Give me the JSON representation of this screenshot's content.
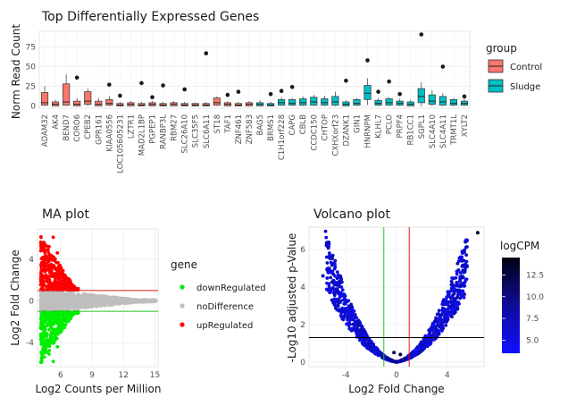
{
  "chart_data": [
    {
      "type": "boxplot",
      "title": "Top Differentially Expressed Genes",
      "xlabel": "",
      "ylabel": "Norm Read Count",
      "ylim": [
        -3,
        95
      ],
      "y_ticks": [
        0,
        25,
        50,
        75
      ],
      "legend": {
        "title": "group",
        "placement": "right",
        "entries": [
          {
            "name": "Control",
            "color": "#f8766d",
            "stroke": "#a03a35"
          },
          {
            "name": "Sludge",
            "color": "#00bfc4",
            "stroke": "#00787c"
          }
        ]
      },
      "genes": [
        "ADAM32",
        "AK4",
        "BEND7",
        "CORO6",
        "CPEB2",
        "GPR161",
        "KIAA0556",
        "LOC105605231",
        "LZTR1",
        "MAD2L1BP",
        "PGPEP1",
        "RANBP3L",
        "RBM27",
        "SLC26A10",
        "SLC35F5",
        "SLC6A11",
        "ST18",
        "TAF1",
        "ZNF461",
        "ZNF583",
        "BAG5",
        "BRMS1",
        "C1H1orf228",
        "CAPG",
        "CBLB",
        "CCDC150",
        "CHTOP",
        "CXHXorf23",
        "DZANK1",
        "GIN1",
        "HNRNPM",
        "KLHL7",
        "PCLO",
        "PRPF4",
        "RB1CC1",
        "SGPL1",
        "SLC4A10",
        "SLC4A11",
        "TRMT1L",
        "XYLT2"
      ],
      "boxes": [
        {
          "gene": "ADAM32",
          "group": "Control",
          "q1": 1,
          "median": 4,
          "q3": 17,
          "wmin": 0,
          "wmax": 25,
          "outliers": []
        },
        {
          "gene": "AK4",
          "group": "Control",
          "q1": 0,
          "median": 2,
          "q3": 5,
          "wmin": 0,
          "wmax": 8,
          "outliers": []
        },
        {
          "gene": "BEND7",
          "group": "Control",
          "q1": 1,
          "median": 5,
          "q3": 28,
          "wmin": 0,
          "wmax": 40,
          "outliers": []
        },
        {
          "gene": "CORO6",
          "group": "Control",
          "q1": 0,
          "median": 2,
          "q3": 6,
          "wmin": 0,
          "wmax": 10,
          "outliers": [
            36
          ]
        },
        {
          "gene": "CPEB2",
          "group": "Control",
          "q1": 2,
          "median": 6,
          "q3": 18,
          "wmin": 0,
          "wmax": 22,
          "outliers": []
        },
        {
          "gene": "GPR161",
          "group": "Control",
          "q1": 0,
          "median": 2,
          "q3": 6,
          "wmin": 0,
          "wmax": 10,
          "outliers": []
        },
        {
          "gene": "KIAA0556",
          "group": "Control",
          "q1": 1,
          "median": 3,
          "q3": 8,
          "wmin": 0,
          "wmax": 12,
          "outliers": [
            27
          ]
        },
        {
          "gene": "LOC105605231",
          "group": "Control",
          "q1": 0,
          "median": 1,
          "q3": 3,
          "wmin": 0,
          "wmax": 5,
          "outliers": [
            13
          ]
        },
        {
          "gene": "LZTR1",
          "group": "Control",
          "q1": 0,
          "median": 2,
          "q3": 4,
          "wmin": 0,
          "wmax": 6,
          "outliers": []
        },
        {
          "gene": "MAD2L1BP",
          "group": "Control",
          "q1": 0,
          "median": 1,
          "q3": 3,
          "wmin": 0,
          "wmax": 5,
          "outliers": [
            29
          ]
        },
        {
          "gene": "PGPEP1",
          "group": "Control",
          "q1": 0,
          "median": 2,
          "q3": 4,
          "wmin": 0,
          "wmax": 6,
          "outliers": [
            11
          ]
        },
        {
          "gene": "RANBP3L",
          "group": "Control",
          "q1": 0,
          "median": 1,
          "q3": 3,
          "wmin": 0,
          "wmax": 5,
          "outliers": [
            26
          ]
        },
        {
          "gene": "RBM27",
          "group": "Control",
          "q1": 0,
          "median": 2,
          "q3": 4,
          "wmin": 0,
          "wmax": 6,
          "outliers": []
        },
        {
          "gene": "SLC26A10",
          "group": "Control",
          "q1": 0,
          "median": 1,
          "q3": 3,
          "wmin": 0,
          "wmax": 5,
          "outliers": [
            21
          ]
        },
        {
          "gene": "SLC35F5",
          "group": "Control",
          "q1": 0,
          "median": 1,
          "q3": 3,
          "wmin": 0,
          "wmax": 4,
          "outliers": []
        },
        {
          "gene": "SLC6A11",
          "group": "Control",
          "q1": 0,
          "median": 1,
          "q3": 3,
          "wmin": 0,
          "wmax": 5,
          "outliers": [
            67
          ]
        },
        {
          "gene": "ST18",
          "group": "Control",
          "q1": 1,
          "median": 4,
          "q3": 10,
          "wmin": 0,
          "wmax": 12,
          "outliers": []
        },
        {
          "gene": "TAF1",
          "group": "Control",
          "q1": 0,
          "median": 2,
          "q3": 4,
          "wmin": 0,
          "wmax": 6,
          "outliers": [
            14
          ]
        },
        {
          "gene": "ZNF461",
          "group": "Control",
          "q1": 0,
          "median": 1,
          "q3": 3,
          "wmin": 0,
          "wmax": 5,
          "outliers": [
            18
          ]
        },
        {
          "gene": "ZNF583",
          "group": "Control",
          "q1": 0,
          "median": 2,
          "q3": 4,
          "wmin": 0,
          "wmax": 6,
          "outliers": []
        },
        {
          "gene": "BAG5",
          "group": "Sludge",
          "q1": 0,
          "median": 2,
          "q3": 4,
          "wmin": 0,
          "wmax": 7,
          "outliers": []
        },
        {
          "gene": "BRMS1",
          "group": "Sludge",
          "q1": 0,
          "median": 1,
          "q3": 3,
          "wmin": 0,
          "wmax": 5,
          "outliers": [
            15
          ]
        },
        {
          "gene": "C1H1orf228",
          "group": "Sludge",
          "q1": 1,
          "median": 4,
          "q3": 8,
          "wmin": 0,
          "wmax": 11,
          "outliers": [
            19
          ]
        },
        {
          "gene": "CAPG",
          "group": "Sludge",
          "q1": 1,
          "median": 3,
          "q3": 8,
          "wmin": 0,
          "wmax": 10,
          "outliers": [
            24
          ]
        },
        {
          "gene": "CBLB",
          "group": "Sludge",
          "q1": 1,
          "median": 4,
          "q3": 9,
          "wmin": 0,
          "wmax": 12,
          "outliers": []
        },
        {
          "gene": "CCDC150",
          "group": "Sludge",
          "q1": 1,
          "median": 5,
          "q3": 11,
          "wmin": 0,
          "wmax": 14,
          "outliers": []
        },
        {
          "gene": "CHTOP",
          "group": "Sludge",
          "q1": 1,
          "median": 4,
          "q3": 9,
          "wmin": 0,
          "wmax": 13,
          "outliers": []
        },
        {
          "gene": "CXHXorf23",
          "group": "Sludge",
          "q1": 1,
          "median": 5,
          "q3": 12,
          "wmin": 0,
          "wmax": 18,
          "outliers": []
        },
        {
          "gene": "DZANK1",
          "group": "Sludge",
          "q1": 0,
          "median": 2,
          "q3": 5,
          "wmin": 0,
          "wmax": 7,
          "outliers": [
            32
          ]
        },
        {
          "gene": "GIN1",
          "group": "Sludge",
          "q1": 1,
          "median": 3,
          "q3": 8,
          "wmin": 0,
          "wmax": 10,
          "outliers": []
        },
        {
          "gene": "HNRNPM",
          "group": "Sludge",
          "q1": 8,
          "median": 16,
          "q3": 26,
          "wmin": 1,
          "wmax": 35,
          "outliers": [
            58
          ]
        },
        {
          "gene": "KLHL7",
          "group": "Sludge",
          "q1": 1,
          "median": 3,
          "q3": 7,
          "wmin": 0,
          "wmax": 10,
          "outliers": [
            18
          ]
        },
        {
          "gene": "PCLO",
          "group": "Sludge",
          "q1": 1,
          "median": 4,
          "q3": 9,
          "wmin": 0,
          "wmax": 11,
          "outliers": [
            31
          ]
        },
        {
          "gene": "PRPF4",
          "group": "Sludge",
          "q1": 1,
          "median": 3,
          "q3": 6,
          "wmin": 0,
          "wmax": 9,
          "outliers": [
            15
          ]
        },
        {
          "gene": "RB1CC1",
          "group": "Sludge",
          "q1": 0,
          "median": 2,
          "q3": 5,
          "wmin": 0,
          "wmax": 8,
          "outliers": []
        },
        {
          "gene": "SGPL1",
          "group": "Sludge",
          "q1": 4,
          "median": 12,
          "q3": 22,
          "wmin": 0,
          "wmax": 30,
          "outliers": [
            91
          ]
        },
        {
          "gene": "SLC4A10",
          "group": "Sludge",
          "q1": 2,
          "median": 6,
          "q3": 14,
          "wmin": 0,
          "wmax": 20,
          "outliers": []
        },
        {
          "gene": "SLC4A11",
          "group": "Sludge",
          "q1": 1,
          "median": 5,
          "q3": 12,
          "wmin": 0,
          "wmax": 16,
          "outliers": [
            50
          ]
        },
        {
          "gene": "TRMT1L",
          "group": "Sludge",
          "q1": 1,
          "median": 3,
          "q3": 8,
          "wmin": 0,
          "wmax": 10,
          "outliers": []
        },
        {
          "gene": "XYLT2",
          "group": "Sludge",
          "q1": 1,
          "median": 3,
          "q3": 6,
          "wmin": 0,
          "wmax": 9,
          "outliers": [
            12
          ]
        }
      ]
    },
    {
      "type": "scatter",
      "title": "MA plot",
      "xlabel": "Log2 Counts per Million",
      "ylabel": "Log2 Fold Change",
      "xlim": [
        3.8,
        15.3
      ],
      "ylim": [
        -6.3,
        6.9
      ],
      "x_ticks": [
        6,
        9,
        12,
        15
      ],
      "y_ticks": [
        -4,
        0,
        4
      ],
      "hlines": [
        {
          "y": 1,
          "color": "#e41a1c"
        },
        {
          "y": -1,
          "color": "#22c422"
        }
      ],
      "legend": {
        "title": "gene",
        "placement": "right",
        "entries": [
          {
            "name": "downRegulated",
            "color": "#00ee00"
          },
          {
            "name": "noDifference",
            "color": "#bebebe"
          },
          {
            "name": "upRegulated",
            "color": "#ff0000"
          }
        ]
      },
      "series": [
        {
          "name": "noDifference",
          "color": "#bebebe",
          "points": [
            [
              4.2,
              0.5
            ],
            [
              4.4,
              -0.6
            ],
            [
              4.6,
              0.8
            ],
            [
              4.8,
              -0.9
            ],
            [
              5.0,
              0.3
            ],
            [
              5.3,
              -0.4
            ],
            [
              5.6,
              0.6
            ],
            [
              6.0,
              -0.7
            ],
            [
              6.5,
              0.4
            ],
            [
              7.0,
              -0.3
            ],
            [
              7.5,
              0.2
            ],
            [
              8.0,
              -0.2
            ],
            [
              8.5,
              0.1
            ],
            [
              9.0,
              -0.1
            ],
            [
              9.5,
              0.0
            ],
            [
              10.0,
              0.1
            ],
            [
              10.5,
              -0.1
            ],
            [
              11.0,
              0.05
            ],
            [
              11.5,
              0.1
            ],
            [
              12.0,
              -0.05
            ],
            [
              12.5,
              0.0
            ],
            [
              13.0,
              0.05
            ],
            [
              13.5,
              0.0
            ],
            [
              14.0,
              0.02
            ],
            [
              14.6,
              0.0
            ],
            [
              15.1,
              0.0
            ]
          ]
        },
        {
          "name": "upRegulated",
          "color": "#ff0000",
          "points": [
            [
              4.3,
              1.4
            ],
            [
              4.5,
              2.8
            ],
            [
              4.7,
              4.2
            ],
            [
              4.9,
              5.2
            ],
            [
              5.1,
              3.5
            ],
            [
              5.3,
              6.1
            ],
            [
              5.5,
              2.1
            ],
            [
              5.7,
              4.6
            ],
            [
              5.9,
              1.8
            ],
            [
              6.0,
              3.1
            ],
            [
              6.2,
              2.4
            ],
            [
              6.4,
              1.6
            ],
            [
              6.6,
              2.0
            ],
            [
              6.8,
              1.3
            ],
            [
              7.0,
              1.5
            ],
            [
              7.3,
              1.2
            ],
            [
              7.6,
              1.1
            ]
          ]
        },
        {
          "name": "downRegulated",
          "color": "#00ee00",
          "points": [
            [
              4.3,
              -1.3
            ],
            [
              4.5,
              -2.6
            ],
            [
              4.7,
              -3.9
            ],
            [
              4.9,
              -5.1
            ],
            [
              5.1,
              -3.2
            ],
            [
              5.3,
              -5.8
            ],
            [
              5.5,
              -2.0
            ],
            [
              5.7,
              -4.4
            ],
            [
              5.9,
              -1.7
            ],
            [
              6.0,
              -3.0
            ],
            [
              6.2,
              -2.3
            ],
            [
              6.4,
              -1.5
            ],
            [
              6.6,
              -1.9
            ],
            [
              6.8,
              -1.2
            ],
            [
              7.0,
              -1.4
            ],
            [
              7.3,
              -1.1
            ],
            [
              7.6,
              -1.05
            ]
          ]
        }
      ]
    },
    {
      "type": "scatter",
      "title": "Volcano plot",
      "xlabel": "Log2 Fold Change",
      "ylabel": "-Log10 adjusted p-Value",
      "xlim": [
        -6.9,
        6.9
      ],
      "ylim": [
        -0.25,
        7.2
      ],
      "x_ticks": [
        -4,
        0,
        4
      ],
      "y_ticks": [
        0,
        2,
        4,
        6
      ],
      "vlines": [
        {
          "x": -1,
          "color": "#22c422"
        },
        {
          "x": 1,
          "color": "#e41a1c"
        }
      ],
      "hlines": [
        {
          "y": 1.3,
          "color": "#000000"
        }
      ],
      "colorbar": {
        "title": "logCPM",
        "min": 3.5,
        "max": 14.5,
        "ticks": [
          5.0,
          7.5,
          10.0,
          12.5
        ],
        "low_color": "#1010ff",
        "high_color": "#000010"
      },
      "points": [
        {
          "x": -5.8,
          "y": 4.6,
          "c": 6
        },
        {
          "x": -5.3,
          "y": 3.9,
          "c": 5
        },
        {
          "x": -4.9,
          "y": 3.3,
          "c": 5
        },
        {
          "x": -4.5,
          "y": 2.8,
          "c": 6
        },
        {
          "x": -4.1,
          "y": 2.4,
          "c": 5
        },
        {
          "x": -3.7,
          "y": 2.0,
          "c": 5
        },
        {
          "x": -3.3,
          "y": 1.7,
          "c": 6
        },
        {
          "x": -2.9,
          "y": 1.3,
          "c": 5
        },
        {
          "x": -2.5,
          "y": 1.0,
          "c": 6
        },
        {
          "x": -2.1,
          "y": 0.8,
          "c": 7
        },
        {
          "x": -1.7,
          "y": 0.6,
          "c": 5
        },
        {
          "x": -1.4,
          "y": 0.4,
          "c": 6
        },
        {
          "x": -1.0,
          "y": 0.3,
          "c": 8
        },
        {
          "x": -0.7,
          "y": 0.2,
          "c": 9
        },
        {
          "x": -0.4,
          "y": 0.1,
          "c": 10
        },
        {
          "x": 0.0,
          "y": 0.02,
          "c": 11
        },
        {
          "x": 0.4,
          "y": 0.1,
          "c": 10
        },
        {
          "x": 0.7,
          "y": 0.2,
          "c": 9
        },
        {
          "x": 1.0,
          "y": 0.3,
          "c": 8
        },
        {
          "x": 1.4,
          "y": 0.45,
          "c": 6
        },
        {
          "x": 1.8,
          "y": 0.7,
          "c": 5
        },
        {
          "x": 2.2,
          "y": 1.0,
          "c": 6
        },
        {
          "x": 2.6,
          "y": 1.4,
          "c": 5
        },
        {
          "x": 3.0,
          "y": 1.8,
          "c": 6
        },
        {
          "x": 3.4,
          "y": 2.2,
          "c": 5
        },
        {
          "x": 3.8,
          "y": 2.7,
          "c": 5
        },
        {
          "x": 4.2,
          "y": 3.2,
          "c": 6
        },
        {
          "x": 4.6,
          "y": 3.8,
          "c": 5
        },
        {
          "x": 5.0,
          "y": 4.3,
          "c": 5
        },
        {
          "x": 6.4,
          "y": 6.9,
          "c": 13
        },
        {
          "x": -0.2,
          "y": 0.5,
          "c": 12
        },
        {
          "x": 0.3,
          "y": 0.4,
          "c": 12.5
        }
      ]
    }
  ]
}
